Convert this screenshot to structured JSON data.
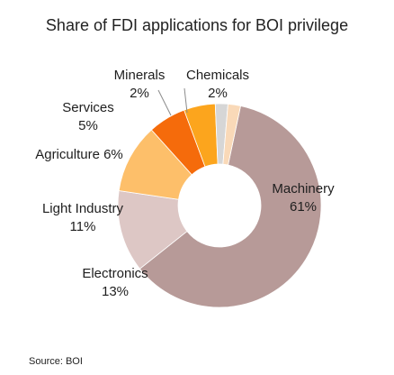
{
  "chart_data": {
    "type": "pie",
    "variant": "donut",
    "title": "Share of FDI applications for BOI privilege",
    "start_angle_deg": 12,
    "direction": "clockwise",
    "slices": [
      {
        "label": "Machinery",
        "value": 61,
        "value_label": "61%",
        "color": "#b79a98"
      },
      {
        "label": "Electronics",
        "value": 13,
        "value_label": "13%",
        "color": "#ddc7c5"
      },
      {
        "label": "Light Industry",
        "value": 11,
        "value_label": "11%",
        "color": "#fdbf6a"
      },
      {
        "label": "Agriculture",
        "value": 6,
        "value_label": "6%",
        "color": "#f56b0b"
      },
      {
        "label": "Services",
        "value": 5,
        "value_label": "5%",
        "color": "#fca51d"
      },
      {
        "label": "Minerals",
        "value": 2,
        "value_label": "2%",
        "color": "#d6d6d6"
      },
      {
        "label": "Chemicals",
        "value": 2,
        "value_label": "2%",
        "color": "#f9d9b8"
      }
    ]
  },
  "source": "Source: BOI"
}
